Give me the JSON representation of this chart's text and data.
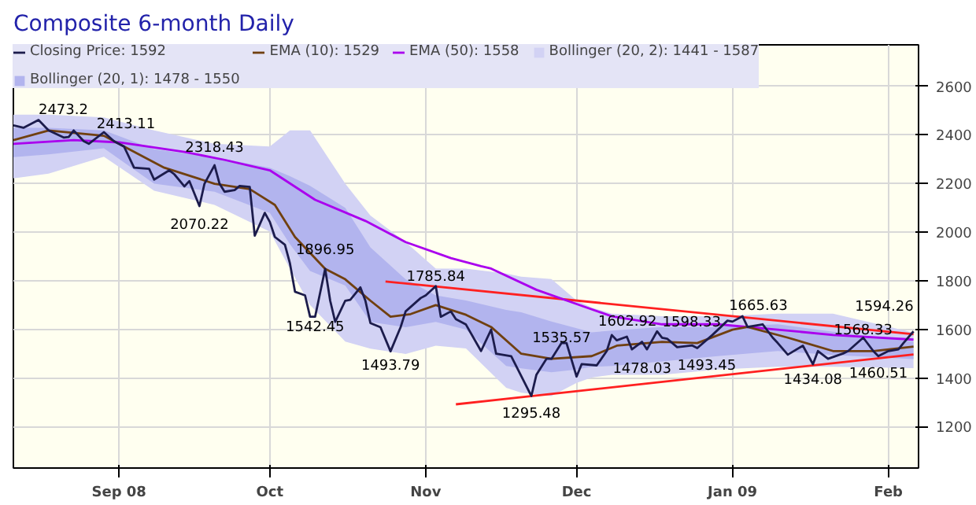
{
  "chart_data": {
    "type": "line",
    "title": "Composite 6-month Daily",
    "legend": "top",
    "grid": true,
    "marker": "none",
    "line_style": "solid",
    "xlim": [
      "2008-08-11",
      "2009-02-07"
    ],
    "xticks": [
      {
        "value": "2008-09-01",
        "label": "Sep 08"
      },
      {
        "value": "2008-10-01",
        "label": "Oct"
      },
      {
        "value": "2008-11-01",
        "label": "Nov"
      },
      {
        "value": "2008-12-01",
        "label": "Dec"
      },
      {
        "value": "2009-01-01",
        "label": "Jan 09"
      },
      {
        "value": "2009-02-01",
        "label": "Feb"
      }
    ],
    "ylim": [
      1030,
      2770
    ],
    "yticks": [
      1200,
      1400,
      1600,
      1800,
      2000,
      2200,
      2400,
      2600
    ],
    "series": [
      {
        "name": "Closing Price: 1592",
        "color": "#1c1c4c",
        "x": [
          "2008-08-11",
          "2008-08-13",
          "2008-08-16",
          "2008-08-18",
          "2008-08-21",
          "2008-08-22",
          "2008-08-23",
          "2008-08-25",
          "2008-08-26",
          "2008-08-29",
          "2008-08-31",
          "2008-09-02",
          "2008-09-04",
          "2008-09-07",
          "2008-09-08",
          "2008-09-11",
          "2008-09-12",
          "2008-09-14",
          "2008-09-15",
          "2008-09-17",
          "2008-09-18",
          "2008-09-20",
          "2008-09-21",
          "2008-09-22",
          "2008-09-24",
          "2008-09-25",
          "2008-09-27",
          "2008-09-28",
          "2008-09-30",
          "2008-10-01",
          "2008-10-02",
          "2008-10-04",
          "2008-10-05",
          "2008-10-06",
          "2008-10-08",
          "2008-10-09",
          "2008-10-10",
          "2008-10-12",
          "2008-10-13",
          "2008-10-14",
          "2008-10-16",
          "2008-10-17",
          "2008-10-19",
          "2008-10-20",
          "2008-10-21",
          "2008-10-23",
          "2008-10-25",
          "2008-10-27",
          "2008-10-28",
          "2008-10-31",
          "2008-11-01",
          "2008-11-03",
          "2008-11-04",
          "2008-11-06",
          "2008-11-07",
          "2008-11-09",
          "2008-11-12",
          "2008-11-14",
          "2008-11-15",
          "2008-11-18",
          "2008-11-22",
          "2008-11-23",
          "2008-11-25",
          "2008-11-26",
          "2008-11-28",
          "2008-11-29",
          "2008-12-01",
          "2008-12-02",
          "2008-12-05",
          "2008-12-07",
          "2008-12-08",
          "2008-12-09",
          "2008-12-11",
          "2008-12-12",
          "2008-12-14",
          "2008-12-15",
          "2008-12-17",
          "2008-12-18",
          "2008-12-19",
          "2008-12-21",
          "2008-12-24",
          "2008-12-25",
          "2008-12-28",
          "2008-12-31",
          "2009-01-01",
          "2009-01-03",
          "2009-01-04",
          "2009-01-07",
          "2009-01-09",
          "2009-01-10",
          "2009-01-12",
          "2009-01-15",
          "2009-01-17",
          "2009-01-18",
          "2009-01-20",
          "2009-01-23",
          "2009-01-24",
          "2009-01-27",
          "2009-01-29",
          "2009-01-30",
          "2009-02-01",
          "2009-02-03",
          "2009-02-04",
          "2009-02-06"
        ],
        "values": [
          2439,
          2429,
          2461,
          2418,
          2389,
          2391,
          2418,
          2374,
          2363,
          2411,
          2374,
          2352,
          2265,
          2260,
          2216,
          2254,
          2238,
          2188,
          2210,
          2107,
          2199,
          2275,
          2199,
          2166,
          2173,
          2190,
          2186,
          1985,
          2079,
          2042,
          1980,
          1948,
          1871,
          1755,
          1740,
          1652,
          1652,
          1849,
          1718,
          1631,
          1718,
          1722,
          1773,
          1718,
          1626,
          1609,
          1510,
          1609,
          1674,
          1729,
          1740,
          1778,
          1652,
          1674,
          1642,
          1620,
          1511,
          1599,
          1500,
          1490,
          1326,
          1413,
          1479,
          1479,
          1544,
          1544,
          1406,
          1457,
          1452,
          1511,
          1577,
          1555,
          1570,
          1518,
          1549,
          1518,
          1592,
          1566,
          1562,
          1527,
          1534,
          1523,
          1577,
          1636,
          1632,
          1654,
          1610,
          1621,
          1566,
          1544,
          1496,
          1533,
          1457,
          1511,
          1479,
          1501,
          1511,
          1566,
          1511,
          1490,
          1511,
          1518,
          1544,
          1592
        ]
      },
      {
        "name": "EMA (10): 1529",
        "color": "#704010",
        "x": [
          "2008-08-11",
          "2008-08-18",
          "2008-08-29",
          "2008-09-02",
          "2008-09-10",
          "2008-09-20",
          "2008-09-27",
          "2008-10-02",
          "2008-10-06",
          "2008-10-12",
          "2008-10-16",
          "2008-10-21",
          "2008-10-25",
          "2008-10-29",
          "2008-11-03",
          "2008-11-09",
          "2008-11-14",
          "2008-11-20",
          "2008-11-26",
          "2008-12-04",
          "2008-12-09",
          "2008-12-18",
          "2008-12-25",
          "2009-01-01",
          "2009-01-04",
          "2009-01-12",
          "2009-01-21",
          "2009-01-29",
          "2009-02-06"
        ],
        "values": [
          2378,
          2418,
          2396,
          2352,
          2265,
          2199,
          2177,
          2112,
          1980,
          1849,
          1806,
          1718,
          1652,
          1663,
          1700,
          1660,
          1610,
          1500,
          1479,
          1490,
          1533,
          1549,
          1544,
          1599,
          1610,
          1566,
          1511,
          1511,
          1529
        ]
      },
      {
        "name": "EMA (50): 1558",
        "color": "#aa00ee",
        "x": [
          "2008-08-11",
          "2008-08-23",
          "2008-09-01",
          "2008-09-14",
          "2008-09-22",
          "2008-10-01",
          "2008-10-10",
          "2008-10-20",
          "2008-10-28",
          "2008-11-06",
          "2008-11-12",
          "2008-11-14",
          "2008-11-23",
          "2008-12-02",
          "2008-12-08",
          "2008-12-18",
          "2008-12-29",
          "2009-01-10",
          "2009-01-21",
          "2009-02-06"
        ],
        "values": [
          2363,
          2378,
          2369,
          2330,
          2297,
          2254,
          2133,
          2046,
          1959,
          1893,
          1860,
          1850,
          1763,
          1697,
          1654,
          1621,
          1621,
          1599,
          1577,
          1558
        ]
      },
      {
        "name": "Bollinger (20, 2): 1441 - 1587",
        "type": "area",
        "color": "#d2d2f4",
        "x": [
          "2008-08-11",
          "2008-08-18",
          "2008-08-29",
          "2008-09-08",
          "2008-09-20",
          "2008-10-01",
          "2008-10-05",
          "2008-10-09",
          "2008-10-16",
          "2008-10-21",
          "2008-10-28",
          "2008-11-03",
          "2008-11-09",
          "2008-11-17",
          "2008-11-20",
          "2008-11-26",
          "2008-12-01",
          "2008-12-04",
          "2008-12-08",
          "2008-12-18",
          "2008-12-29",
          "2009-01-10",
          "2009-01-21",
          "2009-02-06"
        ],
        "values": [
          null,
          null,
          null,
          null,
          null,
          null,
          null,
          null,
          null,
          null,
          null,
          null,
          null,
          null,
          null,
          null,
          null,
          null,
          null,
          null,
          null,
          null,
          null,
          null
        ],
        "upper": [
          2483,
          2483,
          2472,
          2418,
          2363,
          2352,
          2418,
          2418,
          2199,
          2068,
          1959,
          1850,
          1850,
          1830,
          1817,
          1807,
          1719,
          1690,
          1665,
          1654,
          1654,
          1665,
          1665,
          1587
        ],
        "lower": [
          2221,
          2240,
          2310,
          2170,
          2112,
          2002,
          1850,
          1700,
          1550,
          1521,
          1499,
          1533,
          1522,
          1360,
          1340,
          1326,
          1380,
          1402,
          1413,
          1413,
          1435,
          1446,
          1446,
          1441
        ]
      },
      {
        "name": "Bollinger (20, 1): 1478 - 1550",
        "type": "area",
        "color": "#b2b4ee",
        "x": [
          "2008-08-11",
          "2008-08-18",
          "2008-08-29",
          "2008-09-08",
          "2008-09-20",
          "2008-10-01",
          "2008-10-05",
          "2008-10-09",
          "2008-10-16",
          "2008-10-21",
          "2008-10-28",
          "2008-11-03",
          "2008-11-09",
          "2008-11-17",
          "2008-11-20",
          "2008-11-26",
          "2008-12-01",
          "2008-12-04",
          "2008-12-08",
          "2008-12-18",
          "2008-12-29",
          "2009-01-10",
          "2009-01-21",
          "2009-02-06"
        ],
        "values": [
          null,
          null,
          null,
          null,
          null,
          null,
          null,
          null,
          null,
          null,
          null,
          null,
          null,
          null,
          null,
          null,
          null,
          null,
          null,
          null,
          null,
          null,
          null,
          null
        ],
        "upper": [
          2429,
          2429,
          2418,
          2341,
          2308,
          2265,
          2230,
          2190,
          2100,
          1937,
          1806,
          1740,
          1719,
          1680,
          1670,
          1632,
          1605,
          1588,
          1595,
          1610,
          1610,
          1621,
          1590,
          1550
        ],
        "lower": [
          2308,
          2320,
          2345,
          2199,
          2166,
          2079,
          1950,
          1840,
          1780,
          1631,
          1609,
          1631,
          1599,
          1450,
          1440,
          1424,
          1435,
          1446,
          1450,
          1468,
          1490,
          1511,
          1495,
          1478
        ]
      },
      {
        "color": "#ff2020",
        "x": [
          "2008-10-24",
          "2009-02-06"
        ],
        "values": [
          1797,
          1580
        ]
      },
      {
        "color": "#ff2020",
        "x": [
          "2008-11-07",
          "2009-02-06"
        ],
        "values": [
          1292,
          1497
        ]
      }
    ],
    "annotations": [
      {
        "text": "2473.2",
        "x": "2008-08-16",
        "y": 2473.2
      },
      {
        "text": "2413.11",
        "x": "2008-08-29",
        "y": 2413.11
      },
      {
        "text": "2318.43",
        "x": "2008-09-20",
        "y": 2318.43
      },
      {
        "text": "2070.22",
        "x": "2008-09-17",
        "y": 2070.22
      },
      {
        "text": "1896.95",
        "x": "2008-10-12",
        "y": 1896.95
      },
      {
        "text": "1542.45",
        "x": "2008-10-10",
        "y": 1652
      },
      {
        "text": "1493.79",
        "x": "2008-10-25",
        "y": 1493.79
      },
      {
        "text": "1785.84",
        "x": "2008-11-03",
        "y": 1785.84
      },
      {
        "text": "1295.48",
        "x": "2008-11-22",
        "y": 1295.48
      },
      {
        "text": "1535.57",
        "x": "2008-11-28",
        "y": 1535.57
      },
      {
        "text": "1602.92",
        "x": "2008-12-08",
        "y": 1602.92
      },
      {
        "text": "1598.33",
        "x": "2008-12-17",
        "y": 1598.33
      },
      {
        "text": "1478.03",
        "x": "2008-12-14",
        "y": 1478.03
      },
      {
        "text": "1493.45",
        "x": "2008-12-25",
        "y": 1493.45
      },
      {
        "text": "1665.63",
        "x": "2009-01-03",
        "y": 1665.63
      },
      {
        "text": "1434.08",
        "x": "2009-01-17",
        "y": 1434.08
      },
      {
        "text": "1568.33",
        "x": "2009-01-27",
        "y": 1568.33
      },
      {
        "text": "1460.51",
        "x": "2009-01-30",
        "y": 1460.51
      },
      {
        "text": "1594.26",
        "x": "2009-02-06",
        "y": 1594.26
      }
    ]
  }
}
